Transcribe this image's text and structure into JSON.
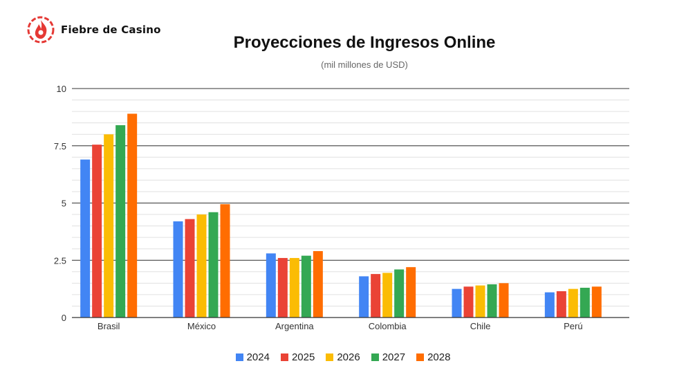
{
  "brand": {
    "name": "Fiebre de Casino",
    "logo_color": "#e53935"
  },
  "chart_data": {
    "type": "bar",
    "title": "Proyecciones de Ingresos Online",
    "subtitle": "(mil millones de USD)",
    "categories": [
      "Brasil",
      "México",
      "Argentina",
      "Colombia",
      "Chile",
      "Perú"
    ],
    "series": [
      {
        "name": "2024",
        "color": "#4285f4",
        "values": [
          6.9,
          4.2,
          2.8,
          1.8,
          1.25,
          1.1
        ]
      },
      {
        "name": "2025",
        "color": "#ea4335",
        "values": [
          7.55,
          4.3,
          2.6,
          1.9,
          1.35,
          1.15
        ]
      },
      {
        "name": "2026",
        "color": "#fbbc04",
        "values": [
          8.0,
          4.5,
          2.6,
          1.95,
          1.4,
          1.25
        ]
      },
      {
        "name": "2027",
        "color": "#34a853",
        "values": [
          8.4,
          4.6,
          2.7,
          2.1,
          1.45,
          1.3
        ]
      },
      {
        "name": "2028",
        "color": "#ff6d01",
        "values": [
          8.9,
          4.95,
          2.9,
          2.2,
          1.5,
          1.35
        ]
      }
    ],
    "ylim": [
      0,
      10
    ],
    "yticks": [
      {
        "value": 0,
        "label": "0"
      },
      {
        "value": 2.5,
        "label": "2.5"
      },
      {
        "value": 5,
        "label": "5"
      },
      {
        "value": 7.5,
        "label": "7.5"
      },
      {
        "value": 10,
        "label": "10"
      }
    ],
    "grid": true,
    "legend_position": "bottom"
  }
}
